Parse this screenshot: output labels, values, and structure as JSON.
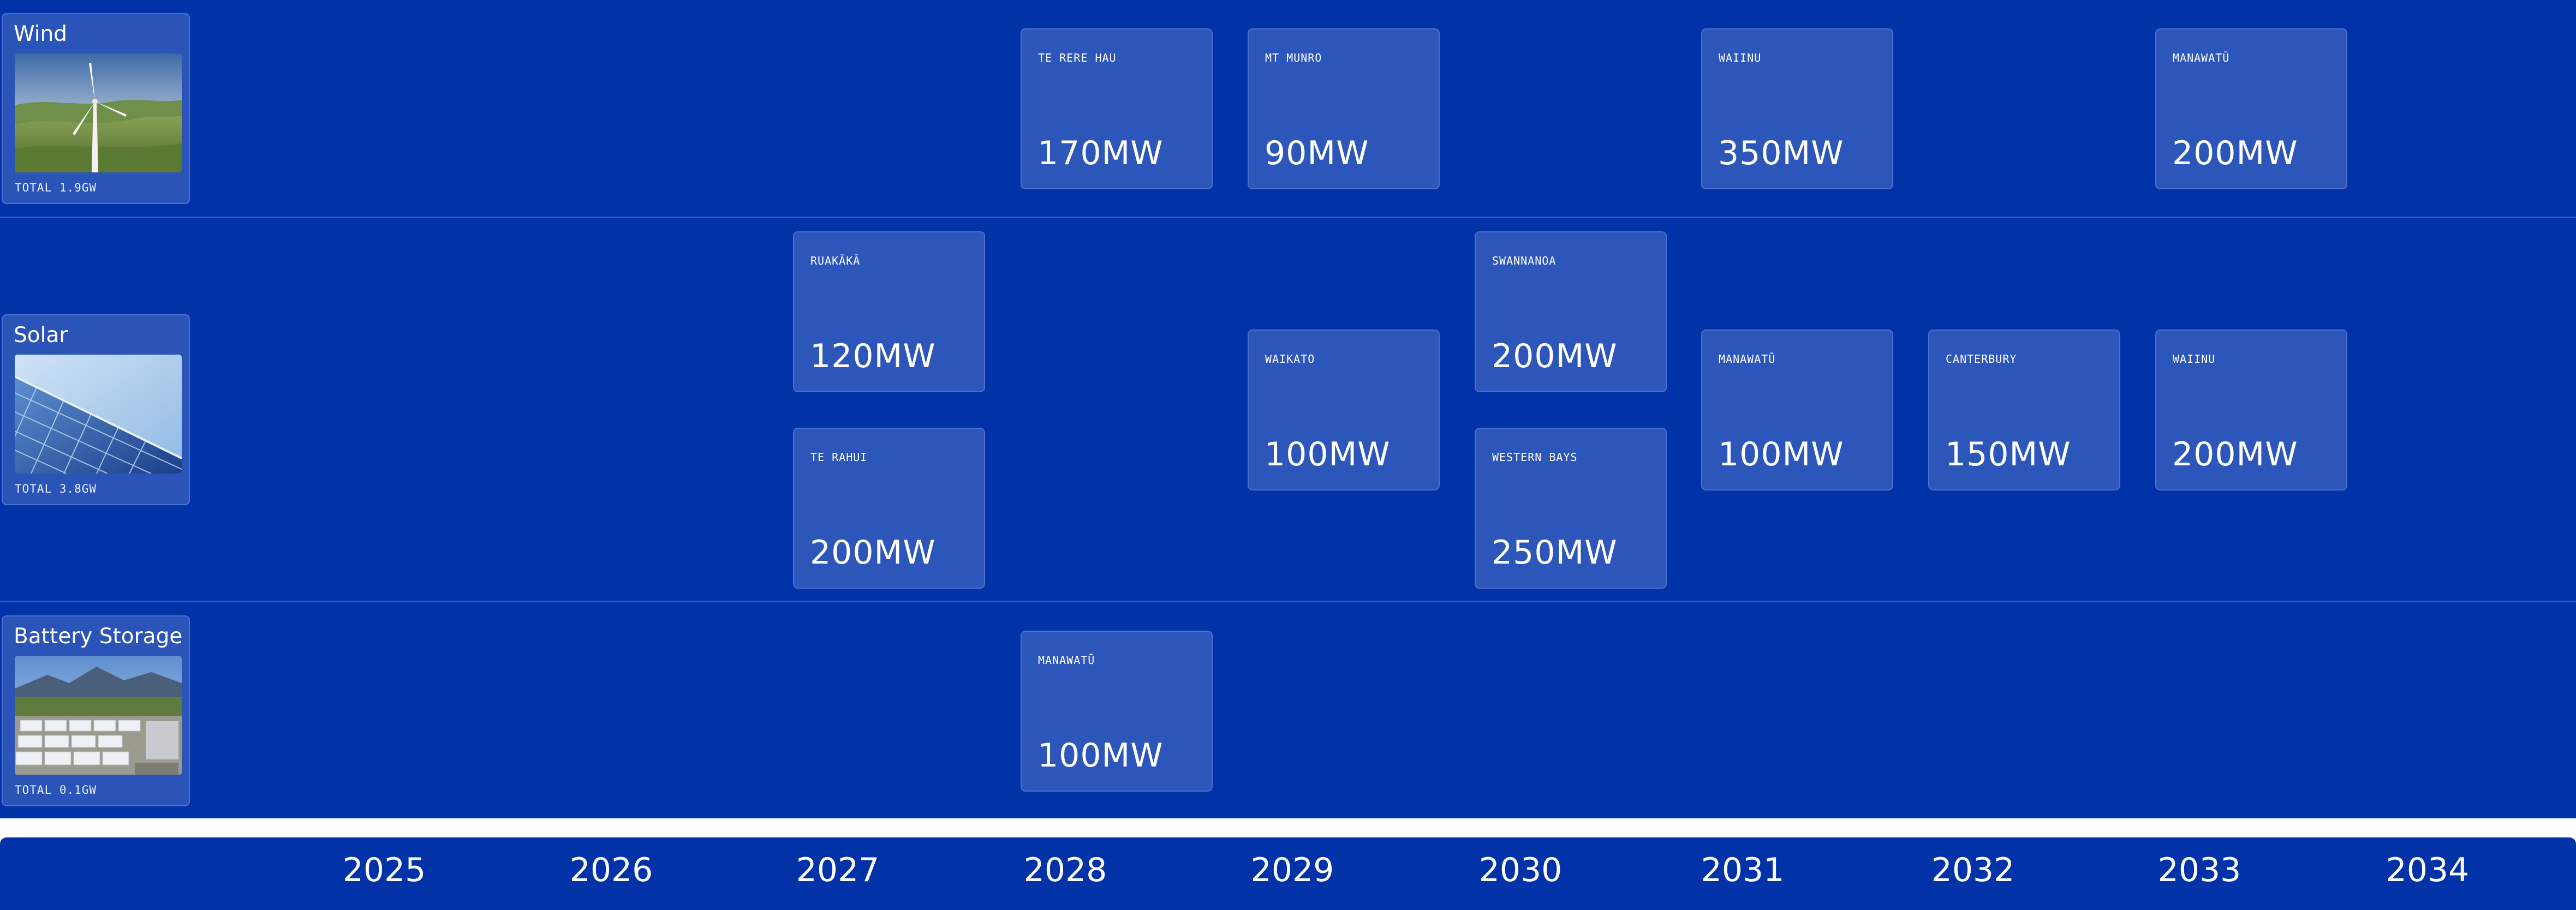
{
  "categories": [
    {
      "name": "Wind",
      "total": "TOTAL 1.9GW",
      "image": "wind-turbine-photo"
    },
    {
      "name": "Solar",
      "total": "TOTAL 3.8GW",
      "image": "solar-panel-photo"
    },
    {
      "name": "Battery Storage",
      "total": "TOTAL 0.1GW",
      "image": "battery-storage-photo"
    }
  ],
  "projects": {
    "wind": [
      {
        "name": "TE RERE HAU",
        "capacity": "170MW",
        "year": "2028"
      },
      {
        "name": "MT MUNRO",
        "capacity": "90MW",
        "year": "2029"
      },
      {
        "name": "WAIINU",
        "capacity": "350MW",
        "year": "2031"
      },
      {
        "name": "MANAWATŪ",
        "capacity": "200MW",
        "year": "2033"
      }
    ],
    "solar": [
      {
        "name": "RUAKĀKĀ",
        "capacity": "120MW",
        "year": "2027"
      },
      {
        "name": "TE RAHUI",
        "capacity": "200MW",
        "year": "2027"
      },
      {
        "name": "WAIKATO",
        "capacity": "100MW",
        "year": "2029"
      },
      {
        "name": "SWANNANOA",
        "capacity": "200MW",
        "year": "2030"
      },
      {
        "name": "WESTERN BAYS",
        "capacity": "250MW",
        "year": "2030"
      },
      {
        "name": "MANAWATŪ",
        "capacity": "100MW",
        "year": "2031"
      },
      {
        "name": "CANTERBURY",
        "capacity": "150MW",
        "year": "2032"
      },
      {
        "name": "WAIINU",
        "capacity": "200MW",
        "year": "2033"
      }
    ],
    "battery": [
      {
        "name": "MANAWATŪ",
        "capacity": "100MW",
        "year": "2028"
      }
    ]
  },
  "years": [
    "2025",
    "2026",
    "2027",
    "2028",
    "2029",
    "2030",
    "2031",
    "2032",
    "2033",
    "2034"
  ],
  "colors": {
    "background": "#0132a7",
    "card": "#2c56b9",
    "card_border": "#4a70cd",
    "text": "#ffffff"
  }
}
